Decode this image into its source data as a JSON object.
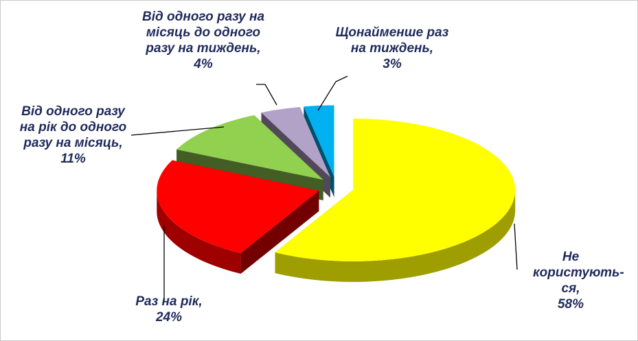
{
  "chart_data": {
    "type": "pie3d",
    "categories": [
      "Не користують-ся,",
      "Раз на рік,",
      "Від одного разу на рік до одного разу на місяць,",
      "Від одного разу на місяць до одного разу на тиждень,",
      "Щонайменше раз на тиждень,"
    ],
    "values": [
      58,
      24,
      11,
      4,
      3
    ],
    "value_labels": [
      "58%",
      "24%",
      "11%",
      "4%",
      "3%"
    ],
    "colors": [
      "#ffff00",
      "#ff0000",
      "#92d050",
      "#b3a2c7",
      "#00b0f0"
    ]
  }
}
